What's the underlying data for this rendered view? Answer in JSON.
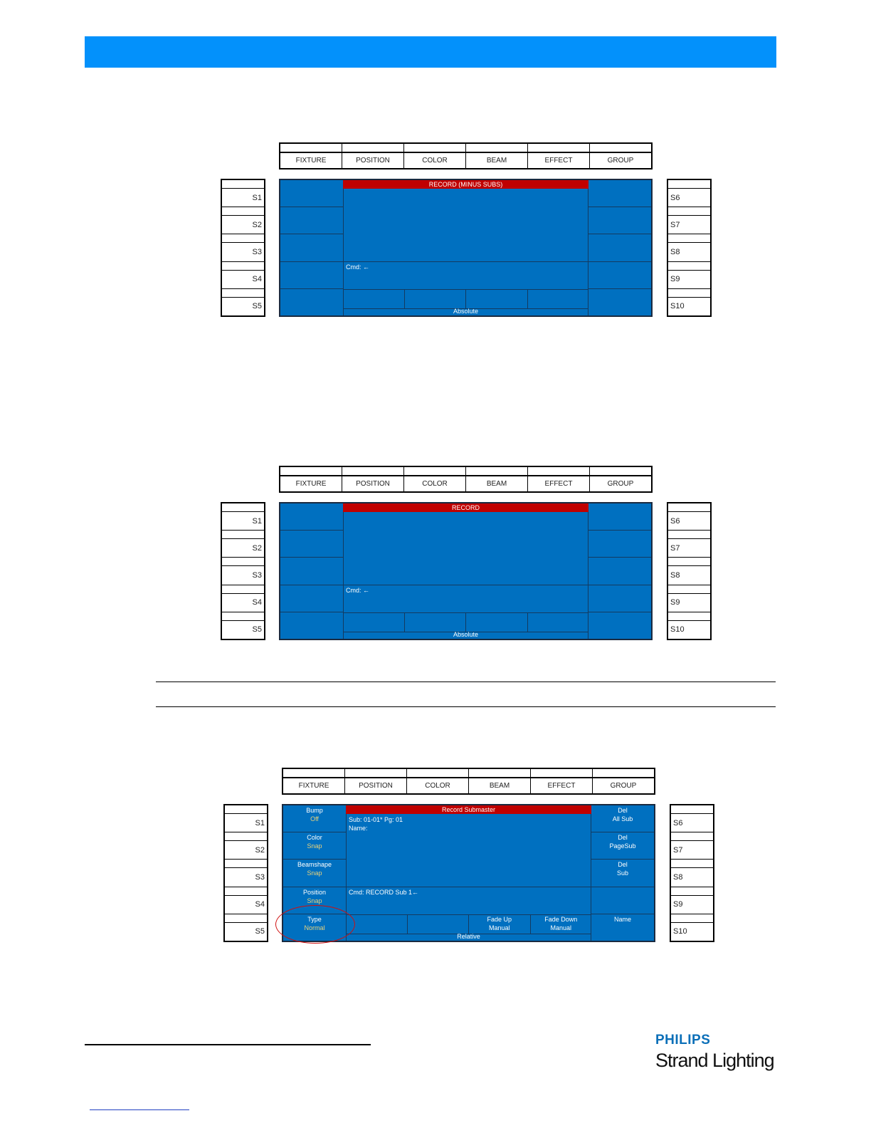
{
  "colors": {
    "header": "#0391fb",
    "screen": "#0070c0",
    "title_bar": "#c00000",
    "value_text": "#e9d27a",
    "highlight": "#d01010"
  },
  "s_left": [
    "S1",
    "S2",
    "S3",
    "S4",
    "S5"
  ],
  "s_right": [
    "S6",
    "S7",
    "S8",
    "S9",
    "S10"
  ],
  "diagrams": [
    {
      "tabs": [
        "FIXTURE",
        "POSITION",
        "COLOR",
        "BEAM",
        "EFFECT",
        "GROUP"
      ],
      "title": "RECORD (MINUS SUBS)",
      "info_lines": [],
      "cmd": "Cmd: ←",
      "mode": "Absolute",
      "left_keys": [],
      "right_keys": [],
      "bottom_cells": []
    },
    {
      "tabs": [
        "FIXTURE",
        "POSITION",
        "COLOR",
        "BEAM",
        "EFFECT",
        "GROUP"
      ],
      "title": "RECORD",
      "info_lines": [],
      "cmd": "Cmd: ←",
      "mode": "Absolute",
      "left_keys": [],
      "right_keys": [],
      "bottom_cells": []
    },
    {
      "tabs": [
        "FIXTURE",
        "POSITION",
        "COLOR",
        "BEAM",
        "EFFECT",
        "GROUP"
      ],
      "title": "Record Submaster",
      "info_lines": [
        "Sub:  01-01*   Pg: 01",
        "Name:"
      ],
      "cmd": "Cmd: RECORD Sub 1←",
      "mode": "Relative",
      "left_keys": [
        {
          "label": "Bump",
          "value": "Off"
        },
        {
          "label": "Color",
          "value": "Snap"
        },
        {
          "label": "Beamshape",
          "value": "Snap"
        },
        {
          "label": "Position",
          "value": "Snap"
        },
        {
          "label": "Type",
          "value": "Normal"
        }
      ],
      "right_keys": [
        {
          "label": "Del",
          "value": "All Sub"
        },
        {
          "label": "Del",
          "value": "PageSub"
        },
        {
          "label": "Del",
          "value": "Sub"
        },
        {
          "label": "",
          "value": ""
        },
        {
          "label": "Name",
          "value": ""
        }
      ],
      "bottom_cells": [
        {
          "label": "",
          "value": ""
        },
        {
          "label": "",
          "value": ""
        },
        {
          "label": "Fade Up",
          "value": "Manual"
        },
        {
          "label": "Fade Down",
          "value": "Manual"
        }
      ],
      "highlighted_key": "Type"
    }
  ],
  "logo": {
    "brand": "PHILIPS",
    "name": "Strand Lighting"
  }
}
